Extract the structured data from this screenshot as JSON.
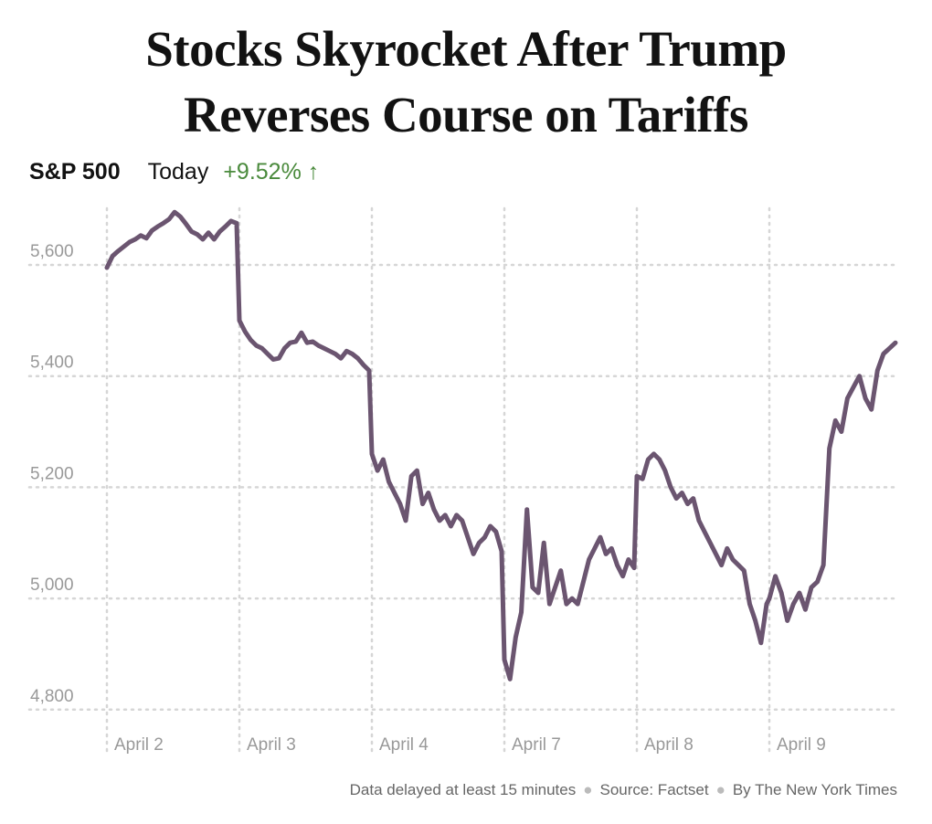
{
  "title": "Stocks Skyrocket After Trump Reverses Course on Tariffs",
  "title_lines": [
    "Stocks Skyrocket After Trump",
    "Reverses Course on Tariffs"
  ],
  "header": {
    "index": "S&P 500",
    "period": "Today",
    "change": "+9.52%",
    "change_icon": "arrow-up-icon",
    "change_color": "#4a8a3c"
  },
  "footer": {
    "note": "Data delayed at least 15 minutes",
    "source": "Source: Factset",
    "credit": "By The New York Times"
  },
  "chart_data": {
    "type": "line",
    "title": "",
    "xlabel": "",
    "ylabel": "",
    "ylim": [
      4770,
      5700
    ],
    "yticks": [
      4800,
      5000,
      5200,
      5400,
      5600
    ],
    "ytick_labels": [
      "4,800",
      "5,000",
      "5,200",
      "5,400",
      "5,600"
    ],
    "categories": [
      "April 2",
      "April 3",
      "April 4",
      "April 7",
      "April 8",
      "April 9"
    ],
    "grid": true,
    "line_color": "#6b5570",
    "series": [
      {
        "intraday_by_day": [
          [
            5595,
            5616,
            5625,
            5633,
            5641,
            5646,
            5653,
            5648,
            5662,
            5669,
            5675,
            5682,
            5695,
            5687,
            5674,
            5660,
            5655,
            5646,
            5658,
            5646,
            5660,
            5669,
            5679,
            5675
          ],
          [
            5500,
            5480,
            5465,
            5455,
            5450,
            5440,
            5430,
            5432,
            5450,
            5460,
            5462,
            5478,
            5460,
            5462,
            5455,
            5450,
            5445,
            5440,
            5432,
            5445,
            5440,
            5432,
            5420,
            5410
          ],
          [
            5260,
            5230,
            5250,
            5210,
            5190,
            5170,
            5140,
            5220,
            5230,
            5170,
            5190,
            5160,
            5140,
            5150,
            5130,
            5150,
            5140,
            5110,
            5080,
            5100,
            5110,
            5130,
            5120,
            5085
          ],
          [
            4890,
            4855,
            4930,
            4975,
            5160,
            5020,
            5010,
            5100,
            4990,
            5020,
            5050,
            4990,
            5000,
            4990,
            5030,
            5070,
            5090,
            5110,
            5080,
            5090,
            5060,
            5040,
            5070,
            5055
          ],
          [
            5220,
            5215,
            5250,
            5260,
            5250,
            5230,
            5200,
            5180,
            5190,
            5170,
            5180,
            5140,
            5120,
            5100,
            5080,
            5060,
            5090,
            5070,
            5060,
            5050,
            4990,
            4960,
            4920,
            4990
          ],
          [
            5000,
            5040,
            5010,
            4960,
            4990,
            5010,
            4980,
            5020,
            5030,
            5060,
            5270,
            5320,
            5300,
            5360,
            5380,
            5400,
            5360,
            5340,
            5410,
            5440,
            5450,
            5460
          ]
        ]
      }
    ]
  }
}
